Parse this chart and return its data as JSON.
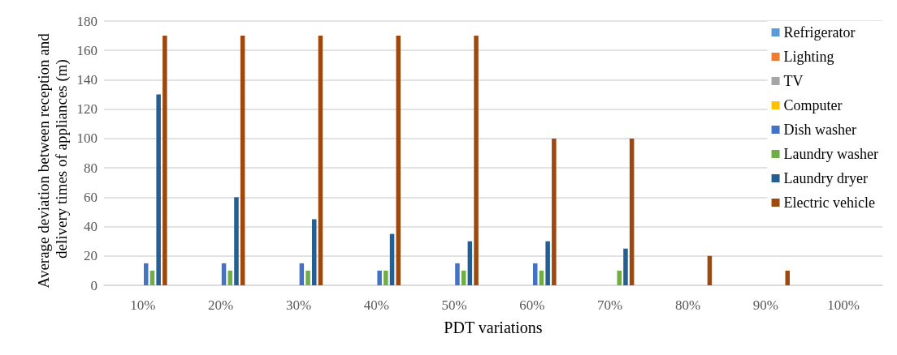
{
  "chart_data": {
    "type": "bar",
    "xlabel": "PDT variations",
    "ylabel": "Average deviation between reception and delivery times of appliances (m)",
    "categories": [
      "10%",
      "20%",
      "30%",
      "40%",
      "50%",
      "60%",
      "70%",
      "80%",
      "90%",
      "100%"
    ],
    "series": [
      {
        "name": "Refrigerator",
        "color": "#5b9bd5",
        "values": [
          0,
          0,
          0,
          0,
          0,
          0,
          0,
          0,
          0,
          0
        ]
      },
      {
        "name": "Lighting",
        "color": "#ed7d31",
        "values": [
          0,
          0,
          0,
          0,
          0,
          0,
          0,
          0,
          0,
          0
        ]
      },
      {
        "name": "TV",
        "color": "#a5a5a5",
        "values": [
          0,
          0,
          0,
          0,
          0,
          0,
          0,
          0,
          0,
          0
        ]
      },
      {
        "name": "Computer",
        "color": "#ffc000",
        "values": [
          0,
          0,
          0,
          0,
          0,
          0,
          0,
          0,
          0,
          0
        ]
      },
      {
        "name": "Dish washer",
        "color": "#4472c4",
        "values": [
          15,
          15,
          15,
          10,
          15,
          15,
          0,
          0,
          0,
          0
        ]
      },
      {
        "name": "Laundry washer",
        "color": "#70ad47",
        "values": [
          10,
          10,
          10,
          10,
          10,
          10,
          10,
          0,
          0,
          0
        ]
      },
      {
        "name": "Laundry dryer",
        "color": "#255e91",
        "values": [
          130,
          60,
          45,
          35,
          30,
          30,
          25,
          0,
          0,
          0
        ]
      },
      {
        "name": "Electric vehicle",
        "color": "#9e480e",
        "values": [
          170,
          170,
          170,
          170,
          170,
          100,
          100,
          20,
          10,
          0
        ]
      }
    ],
    "ylim": [
      0,
      180
    ],
    "yticks": [
      0,
      20,
      40,
      60,
      80,
      100,
      120,
      140,
      160,
      180
    ],
    "grid": "y",
    "legend": "right"
  }
}
